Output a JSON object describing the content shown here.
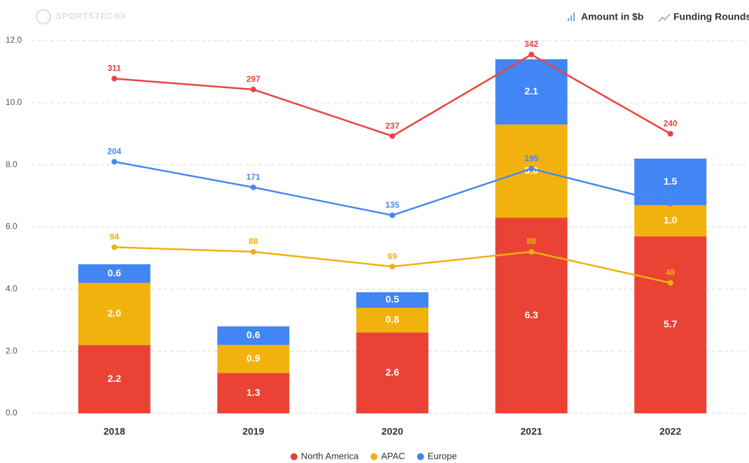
{
  "chart_data": {
    "type": "bar",
    "stacked": true,
    "logo": "SPORTSTECHX",
    "legend_top": [
      "Amount in $b",
      "Funding Rounds"
    ],
    "categories": [
      "2018",
      "2019",
      "2020",
      "2021",
      "2022"
    ],
    "ylim": [
      0,
      12
    ],
    "yticks": [
      {
        "value": 0,
        "label": "0.0"
      },
      {
        "value": 2,
        "label": "2.0"
      },
      {
        "value": 4,
        "label": "4.0"
      },
      {
        "value": 6,
        "label": "6.0"
      },
      {
        "value": 8,
        "label": "8.0"
      },
      {
        "value": 10,
        "label": "10.0"
      },
      {
        "value": 12,
        "label": "12.0"
      }
    ],
    "grid": true,
    "series": [
      {
        "name": "North America",
        "color": "#ea4335",
        "values": [
          2.2,
          1.3,
          2.6,
          6.3,
          5.7
        ],
        "value_labels": [
          "2.2",
          "1.3",
          "2.6",
          "6.3",
          "5.7"
        ]
      },
      {
        "name": "APAC",
        "color": "#f2b20d",
        "values": [
          2.0,
          0.9,
          0.8,
          3.0,
          1.0
        ],
        "value_labels": [
          "2.0",
          "0.9",
          "0.8",
          "3.0",
          "1.0"
        ]
      },
      {
        "name": "Europe",
        "color": "#4285f4",
        "values": [
          0.6,
          0.6,
          0.5,
          2.1,
          1.5
        ],
        "value_labels": [
          "0.6",
          "0.6",
          "0.5",
          "2.1",
          "1.5"
        ]
      }
    ],
    "y2lim": [
      -120,
      360
    ],
    "lines": [
      {
        "color": "#e8453c",
        "axis": "y2",
        "values": [
          311,
          297,
          237,
          342,
          240
        ]
      },
      {
        "color": "#4a88ec",
        "axis": "y2",
        "values": [
          204,
          171,
          135,
          195,
          150
        ]
      },
      {
        "color": "#eeb111",
        "axis": "y2",
        "values": [
          94,
          88,
          69,
          88,
          48
        ]
      }
    ]
  }
}
